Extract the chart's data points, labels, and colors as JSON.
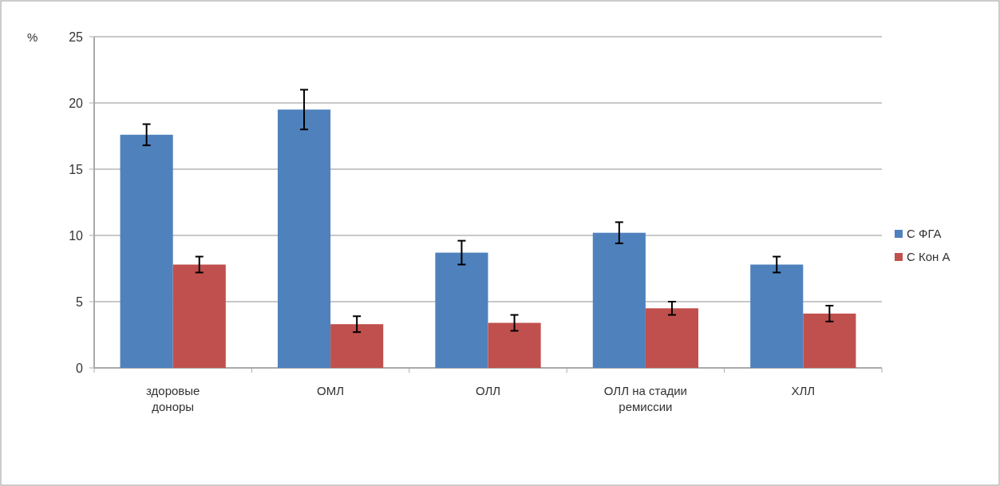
{
  "chart_data": {
    "type": "bar",
    "ylabel": "%",
    "categories": [
      "здоровые доноры",
      "ОМЛ",
      "ОЛЛ",
      "ОЛЛ на стадии ремиссии",
      "ХЛЛ"
    ],
    "series": [
      {
        "name": "С ФГА",
        "color": "#4f81bd",
        "values": [
          17.6,
          19.5,
          8.7,
          10.2,
          7.8
        ],
        "errors": [
          0.8,
          1.5,
          0.9,
          0.8,
          0.6
        ]
      },
      {
        "name": "С Кон А",
        "color": "#c0504d",
        "values": [
          7.8,
          3.3,
          3.4,
          4.5,
          4.1
        ],
        "errors": [
          0.6,
          0.6,
          0.6,
          0.5,
          0.6
        ]
      }
    ],
    "ylim": [
      0,
      25
    ],
    "yticks": [
      0,
      5,
      10,
      15,
      20,
      25
    ],
    "grid": "y",
    "legend": "right"
  }
}
